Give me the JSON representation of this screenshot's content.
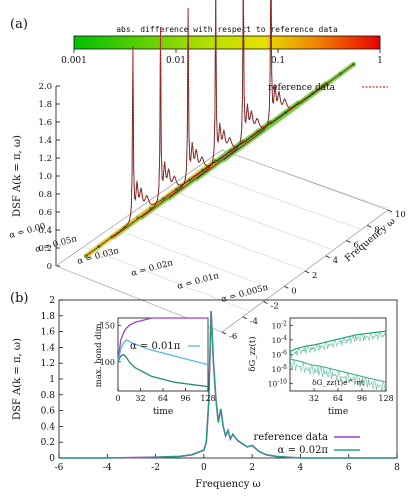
{
  "colors": {
    "reference": "#e03030",
    "reference_b": "#9a3fd0",
    "alpha_b": "#1fa37a",
    "trace_a": "#1a1a1a",
    "inset_light": "#5ab6e6",
    "inset_dark": "#1f8f7a",
    "bar_low": "#00c000",
    "bar_mid": "#e8e000",
    "bar_high": "#e80000"
  },
  "chart_data": [
    {
      "panel": "(a)",
      "type": "line",
      "colorbar": {
        "label": "abs. difference with respect to reference data",
        "ticks": [
          "0.001",
          "0.01",
          "0.1",
          "1"
        ]
      },
      "ylabel": "DSF A(k = π, ω)",
      "yticks": [
        "0",
        "0.2",
        "0.4",
        "0.6",
        "0.8",
        "1.0",
        "1.2",
        "1.4",
        "1.6",
        "1.8",
        "2.0"
      ],
      "ylim": [
        0,
        2.0
      ],
      "depth_label": "Frequency ω",
      "depth_ticks": [
        "-6",
        "-4",
        "-2",
        "0",
        "2",
        "4",
        "6",
        "8",
        "10"
      ],
      "legend": "reference data",
      "series_labels": [
        "α = 0.00",
        "α = 0.05π",
        "α = 0.03π",
        "α = 0.02π",
        "α = 0.01π",
        "α = 0.005π"
      ]
    },
    {
      "panel": "(b)",
      "type": "line",
      "ylabel": "DSF A(k = π, ω)",
      "xlabel": "Frequency ω",
      "xlim": [
        -6,
        8
      ],
      "ylim": [
        0,
        2.0
      ],
      "xticks": [
        "-6",
        "-4",
        "-2",
        "0",
        "2",
        "4",
        "6",
        "8"
      ],
      "yticks": [
        "0",
        "0.2",
        "0.4",
        "0.6",
        "0.8",
        "1",
        "1.2",
        "1.4",
        "1.6",
        "1.8",
        "2"
      ],
      "legend": [
        "reference data",
        "α = 0.02π"
      ],
      "x": [
        -6,
        -4,
        -2,
        -1,
        -0.5,
        0,
        0.1,
        0.2,
        0.3,
        0.4,
        0.5,
        0.6,
        0.7,
        0.8,
        0.9,
        1.0,
        1.1,
        1.2,
        1.4,
        1.6,
        1.8,
        2.0,
        2.3,
        2.6,
        3,
        4,
        6,
        8
      ],
      "series": [
        {
          "name": "reference data",
          "values": [
            0,
            0,
            0.01,
            0.02,
            0.04,
            0.1,
            0.2,
            0.7,
            1.86,
            1.2,
            0.75,
            0.45,
            0.62,
            0.4,
            0.28,
            0.35,
            0.24,
            0.3,
            0.22,
            0.18,
            0.14,
            0.16,
            0.08,
            0.04,
            0.02,
            0,
            0,
            0
          ]
        },
        {
          "name": "α = 0.02π",
          "values": [
            0,
            0,
            0.01,
            0.02,
            0.04,
            0.1,
            0.2,
            0.7,
            1.86,
            1.2,
            0.75,
            0.45,
            0.62,
            0.4,
            0.28,
            0.35,
            0.24,
            0.3,
            0.22,
            0.18,
            0.14,
            0.16,
            0.08,
            0.04,
            0.02,
            0,
            0,
            0
          ]
        }
      ],
      "inset_left": {
        "ylabel": "max. bond dim.",
        "xlabel": "time",
        "xticks": [
          "0",
          "32",
          "64",
          "96",
          "128"
        ],
        "yticks": [
          "100",
          "150"
        ],
        "xlim": [
          0,
          128
        ],
        "ylim": [
          60,
          160
        ],
        "annotation": "α = 0.01π",
        "x": [
          0,
          4,
          8,
          12,
          16,
          20,
          24,
          32,
          40,
          48,
          56,
          64,
          72,
          80,
          96,
          112,
          128
        ],
        "series": [
          {
            "color_key": "reference_b",
            "values": [
              100,
              130,
              140,
              146,
              150,
              152,
              154,
              156,
              158,
              160,
              160,
              160,
              160,
              160,
              160,
              160,
              160
            ]
          },
          {
            "color_key": "inset_light",
            "values": [
              100,
              118,
              126,
              130,
              128,
              126,
              124,
              122,
              118,
              116,
              114,
              112,
              110,
              108,
              104,
              100,
              96
            ]
          },
          {
            "color_key": "inset_dark",
            "values": [
              100,
              108,
              110,
              106,
              100,
              96,
              92,
              88,
              84,
              80,
              78,
              76,
              74,
              72,
              70,
              68,
              66
            ]
          }
        ]
      },
      "inset_right": {
        "ylabel": "δG_zz(t)",
        "xlabel": "time",
        "xticks": [
          "32",
          "64",
          "96",
          "128"
        ],
        "yticks": [
          "10^-2",
          "10^-4",
          "10^-6",
          "10^-8",
          "10^-10"
        ],
        "xlim": [
          0,
          128
        ],
        "ylim_exponent": [
          -11,
          -1
        ],
        "annotation": "δG_zz(t)e^-ηt",
        "x": [
          0,
          8,
          16,
          24,
          32,
          40,
          48,
          56,
          64,
          72,
          80,
          88,
          96,
          104,
          112,
          120,
          128
        ],
        "series": [
          {
            "color_key": "alpha_b",
            "values_log10": [
              -5.6,
              -5.2,
              -5.0,
              -4.8,
              -4.7,
              -4.5,
              -4.3,
              -4.1,
              -3.9,
              -3.7,
              -3.5,
              -3.3,
              -3.2,
              -3.1,
              -3.0,
              -2.9,
              -2.8
            ]
          },
          {
            "color_key": "alpha_b",
            "values_log10": [
              -6.6,
              -6.8,
              -7.0,
              -7.3,
              -7.5,
              -7.6,
              -7.8,
              -8.0,
              -8.2,
              -8.4,
              -8.6,
              -8.8,
              -9.0,
              -9.2,
              -9.4,
              -9.6,
              -9.8
            ]
          }
        ]
      }
    }
  ]
}
